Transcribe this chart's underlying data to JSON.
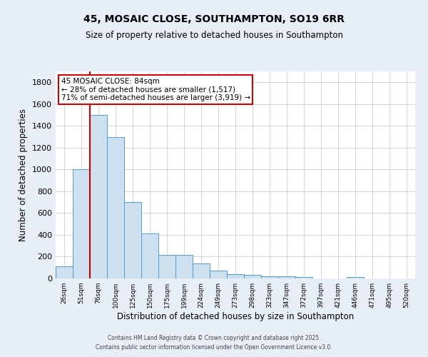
{
  "title": "45, MOSAIC CLOSE, SOUTHAMPTON, SO19 6RR",
  "subtitle": "Size of property relative to detached houses in Southampton",
  "xlabel": "Distribution of detached houses by size in Southampton",
  "ylabel": "Number of detached properties",
  "categories": [
    "26sqm",
    "51sqm",
    "76sqm",
    "100sqm",
    "125sqm",
    "150sqm",
    "175sqm",
    "199sqm",
    "224sqm",
    "249sqm",
    "273sqm",
    "298sqm",
    "323sqm",
    "347sqm",
    "372sqm",
    "397sqm",
    "421sqm",
    "446sqm",
    "471sqm",
    "495sqm",
    "520sqm"
  ],
  "values": [
    110,
    1000,
    1500,
    1300,
    700,
    410,
    215,
    215,
    140,
    75,
    40,
    30,
    20,
    20,
    15,
    0,
    0,
    15,
    0,
    0,
    0
  ],
  "bar_color": "#cce0f0",
  "bar_edge_color": "#5599cc",
  "vline_color": "#cc0000",
  "annotation_text": "45 MOSAIC CLOSE: 84sqm\n← 28% of detached houses are smaller (1,517)\n71% of semi-detached houses are larger (3,919) →",
  "annotation_box_color": "#ffffff",
  "annotation_box_edge": "#cc0000",
  "bg_color": "#e8eef5",
  "plot_bg_color": "#ffffff",
  "grid_color": "#c0c8d0",
  "ylim": [
    0,
    1900
  ],
  "yticks": [
    0,
    200,
    400,
    600,
    800,
    1000,
    1200,
    1400,
    1600,
    1800
  ],
  "footer1": "Contains HM Land Registry data © Crown copyright and database right 2025.",
  "footer2": "Contains public sector information licensed under the Open Government Licence v3.0."
}
